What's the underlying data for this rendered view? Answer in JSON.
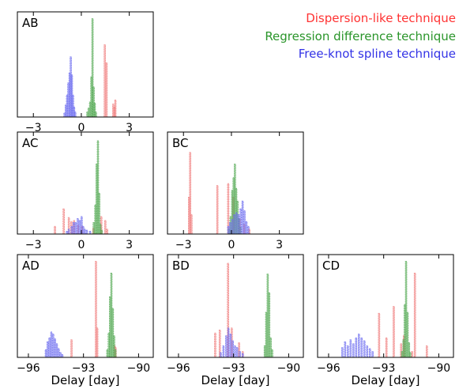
{
  "chart_data": {
    "type": "histogram-grid",
    "xlabel": "Delay [day]",
    "legend": [
      {
        "name": "Dispersion-like technique",
        "color": "#ff3333",
        "placement": "top-right"
      },
      {
        "name": "Regression difference technique",
        "color": "#2a952a",
        "placement": "top-right"
      },
      {
        "name": "Free-knot spline technique",
        "color": "#3232e6",
        "placement": "top-right"
      }
    ],
    "colors": {
      "dispersion": "#f08080",
      "regression": "#55aa55",
      "spline": "#7070f0"
    },
    "panels": [
      {
        "id": "AB",
        "label": "AB",
        "xlim": [
          -4.0,
          4.5
        ],
        "ticks": [
          -3,
          0,
          3
        ],
        "tick_labels": [
          "−3",
          "0",
          "3"
        ],
        "series": {
          "dispersion": [
            [
              1.47,
              0.72
            ],
            [
              1.58,
              0.54
            ],
            [
              2.0,
              0.13
            ],
            [
              2.07,
              0.1
            ],
            [
              2.13,
              0.17
            ]
          ],
          "regression": [
            [
              0.38,
              0.05
            ],
            [
              0.46,
              0.09
            ],
            [
              0.55,
              0.15
            ],
            [
              0.63,
              0.4
            ],
            [
              0.7,
              0.98
            ],
            [
              0.77,
              0.3
            ],
            [
              0.84,
              0.14
            ],
            [
              0.91,
              0.05
            ]
          ],
          "spline": [
            [
              -1.05,
              0.04
            ],
            [
              -0.97,
              0.12
            ],
            [
              -0.89,
              0.22
            ],
            [
              -0.81,
              0.34
            ],
            [
              -0.73,
              0.44
            ],
            [
              -0.66,
              0.6
            ],
            [
              -0.59,
              0.42
            ],
            [
              -0.52,
              0.22
            ],
            [
              -0.45,
              0.1
            ],
            [
              -0.38,
              0.05
            ]
          ]
        }
      },
      {
        "id": "AC",
        "label": "AC",
        "xlim": [
          -4.0,
          4.5
        ],
        "ticks": [
          -3,
          0,
          3
        ],
        "tick_labels": [
          "−3",
          "0",
          "3"
        ],
        "series": {
          "dispersion": [
            [
              -1.65,
              0.08
            ],
            [
              -1.1,
              0.26
            ],
            [
              -0.78,
              0.17
            ],
            [
              -0.62,
              0.13
            ],
            [
              -0.45,
              0.14
            ],
            [
              -0.2,
              0.09
            ],
            [
              0.05,
              0.08
            ],
            [
              0.75,
              0.06
            ],
            [
              1.25,
              0.18
            ],
            [
              1.5,
              0.14
            ],
            [
              1.62,
              0.05
            ]
          ],
          "regression": [
            [
              0.78,
              0.12
            ],
            [
              0.88,
              0.3
            ],
            [
              0.96,
              0.72
            ],
            [
              1.04,
              0.96
            ],
            [
              1.12,
              0.42
            ],
            [
              1.2,
              0.1
            ],
            [
              1.28,
              0.04
            ]
          ],
          "spline": [
            [
              -0.9,
              0.03
            ],
            [
              -0.78,
              0.05
            ],
            [
              -0.6,
              0.08
            ],
            [
              -0.48,
              0.12
            ],
            [
              -0.35,
              0.12
            ],
            [
              -0.22,
              0.16
            ],
            [
              -0.1,
              0.14
            ],
            [
              0.02,
              0.18
            ],
            [
              0.12,
              0.08
            ],
            [
              0.22,
              0.05
            ],
            [
              0.35,
              0.04
            ],
            [
              0.55,
              0.03
            ]
          ]
        }
      },
      {
        "id": "BC",
        "label": "BC",
        "xlim": [
          -4.0,
          4.5
        ],
        "ticks": [
          -3,
          0,
          3
        ],
        "tick_labels": [
          "−3",
          "0",
          "3"
        ],
        "series": {
          "dispersion": [
            [
              -2.65,
              0.38
            ],
            [
              -2.58,
              0.84
            ],
            [
              -2.5,
              0.2
            ],
            [
              -0.88,
              0.5
            ],
            [
              -0.2,
              0.52
            ],
            [
              0.12,
              0.38
            ],
            [
              0.52,
              0.16
            ],
            [
              0.8,
              0.1
            ],
            [
              1.12,
              0.05
            ]
          ],
          "regression": [
            [
              -0.15,
              0.05
            ],
            [
              -0.05,
              0.18
            ],
            [
              0.05,
              0.45
            ],
            [
              0.14,
              0.58
            ],
            [
              0.22,
              0.72
            ],
            [
              0.3,
              0.47
            ],
            [
              0.38,
              0.34
            ],
            [
              0.46,
              0.16
            ],
            [
              0.56,
              0.07
            ]
          ],
          "spline": [
            [
              -0.2,
              0.08
            ],
            [
              -0.08,
              0.12
            ],
            [
              0.05,
              0.15
            ],
            [
              0.18,
              0.2
            ],
            [
              0.32,
              0.22
            ],
            [
              0.45,
              0.2
            ],
            [
              0.58,
              0.26
            ],
            [
              0.7,
              0.34
            ],
            [
              0.82,
              0.24
            ],
            [
              0.94,
              0.13
            ],
            [
              1.06,
              0.08
            ]
          ]
        }
      },
      {
        "id": "AD",
        "label": "AD",
        "xlim": [
          -96.6,
          -89.2
        ],
        "ticks": [
          -96,
          -93,
          -90
        ],
        "tick_labels": [
          "−96",
          "−93",
          "−90"
        ],
        "series": {
          "dispersion": [
            [
              -93.65,
              0.18
            ],
            [
              -92.32,
              0.98
            ],
            [
              -92.25,
              0.3
            ],
            [
              -91.3,
              0.12
            ],
            [
              -91.25,
              0.1
            ]
          ],
          "regression": [
            [
              -91.7,
              0.08
            ],
            [
              -91.62,
              0.25
            ],
            [
              -91.55,
              0.62
            ],
            [
              -91.48,
              0.86
            ],
            [
              -91.4,
              0.5
            ],
            [
              -91.33,
              0.22
            ],
            [
              -91.26,
              0.08
            ]
          ],
          "spline": [
            [
              -95.05,
              0.08
            ],
            [
              -94.95,
              0.16
            ],
            [
              -94.85,
              0.2
            ],
            [
              -94.75,
              0.26
            ],
            [
              -94.65,
              0.24
            ],
            [
              -94.55,
              0.19
            ],
            [
              -94.45,
              0.14
            ],
            [
              -94.35,
              0.09
            ],
            [
              -94.25,
              0.05
            ],
            [
              -94.15,
              0.03
            ]
          ]
        }
      },
      {
        "id": "BD",
        "label": "BD",
        "xlim": [
          -96.6,
          -89.2
        ],
        "ticks": [
          -96,
          -93,
          -90
        ],
        "tick_labels": [
          "−96",
          "−93",
          "−90"
        ],
        "series": {
          "dispersion": [
            [
              -94.0,
              0.25
            ],
            [
              -93.75,
              0.28
            ],
            [
              -93.3,
              0.96
            ],
            [
              -93.1,
              0.3
            ],
            [
              -92.7,
              0.15
            ],
            [
              -92.5,
              0.06
            ]
          ],
          "regression": [
            [
              -91.3,
              0.12
            ],
            [
              -91.22,
              0.46
            ],
            [
              -91.14,
              0.85
            ],
            [
              -91.06,
              0.66
            ],
            [
              -90.98,
              0.2
            ],
            [
              -90.9,
              0.08
            ]
          ],
          "spline": [
            [
              -93.7,
              0.05
            ],
            [
              -93.55,
              0.12
            ],
            [
              -93.4,
              0.22
            ],
            [
              -93.28,
              0.3
            ],
            [
              -93.16,
              0.24
            ],
            [
              -93.04,
              0.17
            ],
            [
              -92.92,
              0.12
            ],
            [
              -92.8,
              0.1
            ],
            [
              -92.65,
              0.06
            ],
            [
              -92.5,
              0.04
            ]
          ]
        }
      },
      {
        "id": "CD",
        "label": "CD",
        "xlim": [
          -96.6,
          -89.2
        ],
        "ticks": [
          -96,
          -93,
          -90
        ],
        "tick_labels": [
          "−96",
          "−93",
          "−90"
        ],
        "series": {
          "dispersion": [
            [
              -93.25,
              0.45
            ],
            [
              -92.85,
              0.2
            ],
            [
              -92.45,
              0.52
            ],
            [
              -92.05,
              0.14
            ],
            [
              -91.9,
              0.22
            ],
            [
              -91.45,
              0.06
            ],
            [
              -91.3,
              0.86
            ],
            [
              -90.65,
              0.12
            ]
          ],
          "regression": [
            [
              -92.0,
              0.06
            ],
            [
              -91.92,
              0.18
            ],
            [
              -91.85,
              0.54
            ],
            [
              -91.78,
              0.98
            ],
            [
              -91.7,
              0.46
            ],
            [
              -91.62,
              0.15
            ],
            [
              -91.55,
              0.05
            ]
          ],
          "spline": [
            [
              -95.25,
              0.1
            ],
            [
              -95.1,
              0.16
            ],
            [
              -94.95,
              0.12
            ],
            [
              -94.8,
              0.18
            ],
            [
              -94.65,
              0.14
            ],
            [
              -94.5,
              0.2
            ],
            [
              -94.35,
              0.24
            ],
            [
              -94.2,
              0.2
            ],
            [
              -94.05,
              0.17
            ],
            [
              -93.9,
              0.12
            ],
            [
              -93.75,
              0.09
            ],
            [
              -93.6,
              0.06
            ]
          ]
        }
      }
    ]
  }
}
